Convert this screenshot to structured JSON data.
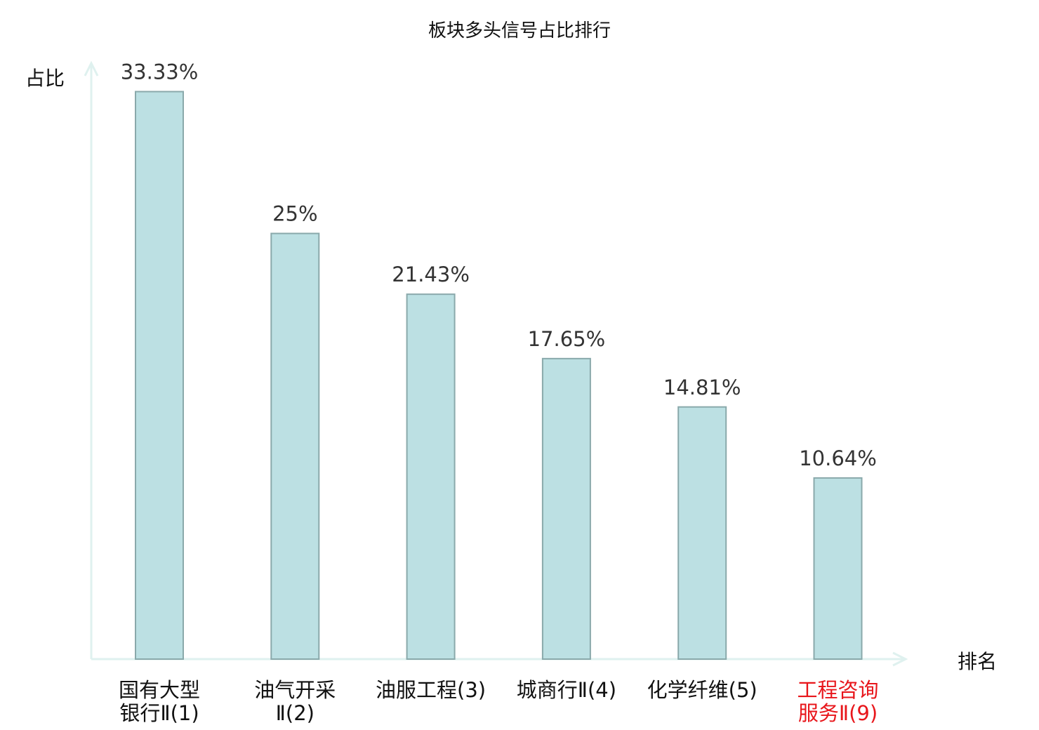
{
  "chart_data": {
    "type": "bar",
    "title": "板块多头信号占比排行",
    "xlabel": "排名",
    "ylabel": "占比",
    "categories": [
      [
        "国有大型",
        "银行Ⅱ(1)"
      ],
      [
        "油气开采",
        "Ⅱ(2)"
      ],
      [
        "油服工程(3)"
      ],
      [
        "城商行Ⅱ(4)"
      ],
      [
        "化学纤维(5)"
      ],
      [
        "工程咨询",
        "服务Ⅱ(9)"
      ]
    ],
    "values": [
      33.33,
      25,
      21.43,
      17.65,
      14.81,
      10.64
    ],
    "value_labels": [
      "33.33%",
      "25%",
      "21.43%",
      "17.65%",
      "14.81%",
      "10.64%"
    ],
    "highlight_index": 5,
    "ylim": [
      0,
      35
    ],
    "grid": false,
    "colors": {
      "bar": "#bce0e3",
      "bar_edge": "#8aa9ab",
      "axis": "#dff1ef",
      "highlight": "#e8161b",
      "text": "#111111"
    }
  }
}
